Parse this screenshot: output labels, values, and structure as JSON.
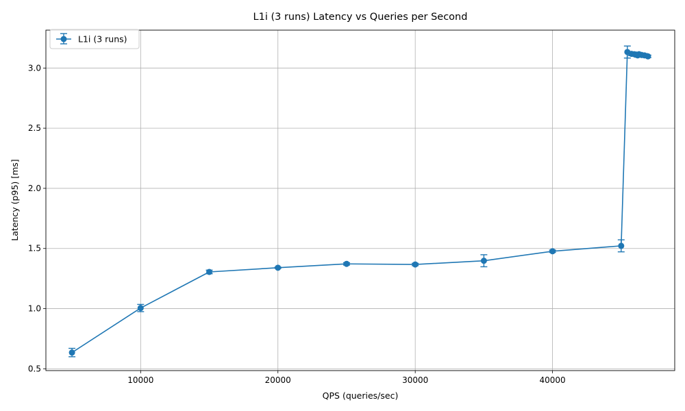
{
  "chart_data": {
    "type": "line",
    "title": "L1i (3 runs) Latency vs Queries per Second",
    "xlabel": "QPS (queries/sec)",
    "ylabel": "Latency (p95) [ms]",
    "xlim": [
      3100,
      48900
    ],
    "ylim": [
      0.485,
      3.315
    ],
    "xticks": [
      10000,
      20000,
      30000,
      40000
    ],
    "yticks": [
      0.5,
      1.0,
      1.5,
      2.0,
      2.5,
      3.0
    ],
    "xtick_labels": [
      "10000",
      "20000",
      "30000",
      "40000"
    ],
    "ytick_labels": [
      "0.5",
      "1.0",
      "1.5",
      "2.0",
      "2.5",
      "3.0"
    ],
    "grid": true,
    "legend_position": "upper-left",
    "series": [
      {
        "name": "L1i (3 runs)",
        "color": "#1f77b4",
        "marker": "circle",
        "error_bars": true,
        "x": [
          5000,
          10000,
          15000,
          20000,
          25000,
          30000,
          35000,
          40000,
          45000,
          45450,
          45750,
          45950,
          46100,
          46200,
          46300,
          46500,
          46700,
          46950
        ],
        "y": [
          0.635,
          1.005,
          1.305,
          1.34,
          1.372,
          1.367,
          1.398,
          1.477,
          1.522,
          3.133,
          3.118,
          3.115,
          3.112,
          3.105,
          3.115,
          3.108,
          3.105,
          3.097
        ],
        "yerr": [
          0.035,
          0.03,
          0.015,
          0.005,
          0.01,
          0.01,
          0.05,
          0.01,
          0.05,
          0.05,
          0.015,
          0.015,
          0.015,
          0.015,
          0.015,
          0.015,
          0.015,
          0.01
        ]
      }
    ]
  }
}
